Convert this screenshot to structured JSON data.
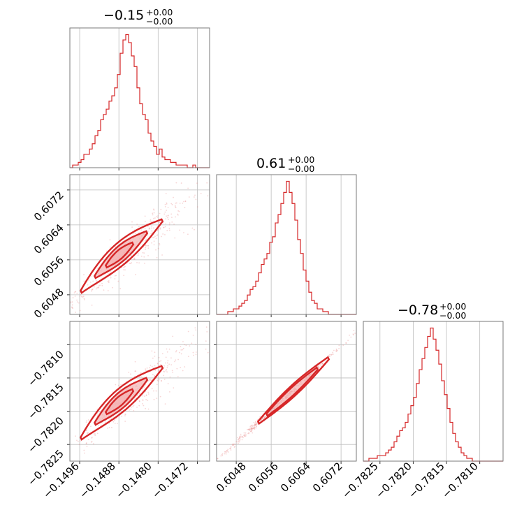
{
  "chart_data": {
    "type": "corner",
    "color": "#d62728",
    "parameters": [
      {
        "title": "−0.15",
        "err_plus": "+0.00",
        "err_minus": "−0.00",
        "median": -0.14875,
        "range": [
          -0.1498,
          -0.14695
        ],
        "ticks": [
          -0.1496,
          -0.1488,
          -0.148,
          -0.1472
        ],
        "tick_labels": [
          "−0.1496",
          "−0.1488",
          "−0.1480",
          "−0.1472"
        ],
        "hist": [
          0,
          1,
          1,
          2,
          3,
          5,
          5,
          7,
          9,
          12,
          14,
          18,
          20,
          22,
          25,
          27,
          30,
          35,
          43,
          48,
          50,
          47,
          42,
          38,
          30,
          24,
          20,
          18,
          13,
          10,
          8,
          5,
          7,
          4,
          3,
          3,
          2,
          2,
          1,
          1,
          1,
          1,
          0,
          0,
          1,
          0,
          0,
          0,
          0,
          0
        ]
      },
      {
        "title": "0.61",
        "err_plus": "+0.00",
        "err_minus": "−0.00",
        "median": 0.60618,
        "range": [
          0.60435,
          0.60755
        ],
        "ticks": [
          0.6048,
          0.6056,
          0.6064,
          0.6072
        ],
        "tick_labels": [
          "0.6048",
          "0.6056",
          "0.6064",
          "0.6072"
        ],
        "hist": [
          0,
          0,
          0,
          0,
          1,
          1,
          2,
          2,
          3,
          4,
          5,
          7,
          9,
          10,
          12,
          15,
          18,
          20,
          22,
          26,
          28,
          33,
          36,
          40,
          44,
          48,
          44,
          40,
          34,
          27,
          22,
          16,
          12,
          8,
          5,
          4,
          2,
          2,
          1,
          1,
          0,
          0,
          0,
          0,
          0,
          0,
          0,
          0,
          0,
          0
        ]
      },
      {
        "title": "−0.78",
        "err_plus": "+0.00",
        "err_minus": "−0.00",
        "median": -0.78134,
        "range": [
          -0.78275,
          -0.78065
        ],
        "ticks": [
          -0.7825,
          -0.782,
          -0.7815,
          -0.781
        ],
        "tick_labels": [
          "−0.7825",
          "−0.7820",
          "−0.7815",
          "−0.7810"
        ],
        "ytick_labels": [
          "−0.7810",
          "−0.7815",
          "−0.7820",
          "−0.7825"
        ],
        "hist": [
          0,
          0,
          1,
          1,
          1,
          2,
          2,
          2,
          3,
          4,
          5,
          7,
          9,
          11,
          12,
          14,
          17,
          20,
          23,
          28,
          33,
          37,
          41,
          45,
          48,
          44,
          40,
          35,
          29,
          24,
          19,
          14,
          10,
          7,
          5,
          3,
          2,
          1,
          1,
          0,
          0,
          0,
          0,
          0,
          0,
          0,
          0,
          0,
          0,
          0
        ]
      }
    ],
    "grid": true,
    "legend": "none"
  }
}
